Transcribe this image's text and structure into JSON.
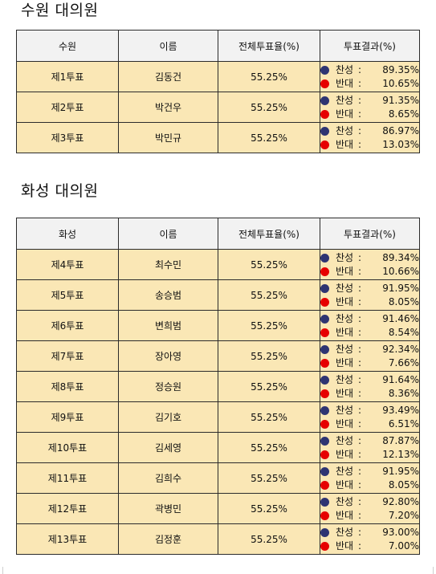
{
  "section1": {
    "title": "수원 대의원",
    "headers": [
      "수원",
      "이름",
      "전체투표율(%)",
      "투표결과(%)"
    ],
    "rows": [
      {
        "ballot": "제1투표",
        "name": "김동건",
        "turnout": "55.25%",
        "yes_label": "찬성",
        "yes": "89.35%",
        "no_label": "반대",
        "no": "10.65%"
      },
      {
        "ballot": "제2투표",
        "name": "박건우",
        "turnout": "55.25%",
        "yes_label": "찬성",
        "yes": "91.35%",
        "no_label": "반대",
        "no": "8.65%"
      },
      {
        "ballot": "제3투표",
        "name": "박민규",
        "turnout": "55.25%",
        "yes_label": "찬성",
        "yes": "86.97%",
        "no_label": "반대",
        "no": "13.03%"
      }
    ]
  },
  "section2": {
    "title": "화성 대의원",
    "headers": [
      "화성",
      "이름",
      "전체투표율(%)",
      "투표결과(%)"
    ],
    "rows": [
      {
        "ballot": "제4투표",
        "name": "최수민",
        "turnout": "55.25%",
        "yes_label": "찬성",
        "yes": "89.34%",
        "no_label": "반대",
        "no": "10.66%"
      },
      {
        "ballot": "제5투표",
        "name": "송승범",
        "turnout": "55.25%",
        "yes_label": "찬성",
        "yes": "91.95%",
        "no_label": "반대",
        "no": "8.05%"
      },
      {
        "ballot": "제6투표",
        "name": "변희범",
        "turnout": "55.25%",
        "yes_label": "찬성",
        "yes": "91.46%",
        "no_label": "반대",
        "no": "8.54%"
      },
      {
        "ballot": "제7투표",
        "name": "장아영",
        "turnout": "55.25%",
        "yes_label": "찬성",
        "yes": "92.34%",
        "no_label": "반대",
        "no": "7.66%"
      },
      {
        "ballot": "제8투표",
        "name": "정승원",
        "turnout": "55.25%",
        "yes_label": "찬성",
        "yes": "91.64%",
        "no_label": "반대",
        "no": "8.36%"
      },
      {
        "ballot": "제9투표",
        "name": "김기호",
        "turnout": "55.25%",
        "yes_label": "찬성",
        "yes": "93.49%",
        "no_label": "반대",
        "no": "6.51%"
      },
      {
        "ballot": "제10투표",
        "name": "김세영",
        "turnout": "55.25%",
        "yes_label": "찬성",
        "yes": "87.87%",
        "no_label": "반대",
        "no": "12.13%"
      },
      {
        "ballot": "제11투표",
        "name": "김희수",
        "turnout": "55.25%",
        "yes_label": "찬성",
        "yes": "91.95%",
        "no_label": "반대",
        "no": "8.05%"
      },
      {
        "ballot": "제12투표",
        "name": "곽병민",
        "turnout": "55.25%",
        "yes_label": "찬성",
        "yes": "92.80%",
        "no_label": "반대",
        "no": "7.20%"
      },
      {
        "ballot": "제13투표",
        "name": "김정훈",
        "turnout": "55.25%",
        "yes_label": "찬성",
        "yes": "93.00%",
        "no_label": "반대",
        "no": "7.00%"
      }
    ]
  },
  "colors": {
    "cell_background": "#fae7b5",
    "header_background": "#f2f2f2",
    "yes_dot": "#2e3472",
    "no_dot": "#e60000",
    "border": "#2b2b2b"
  },
  "icons": {
    "yes": "navy-circle-icon",
    "no": "red-circle-icon"
  }
}
